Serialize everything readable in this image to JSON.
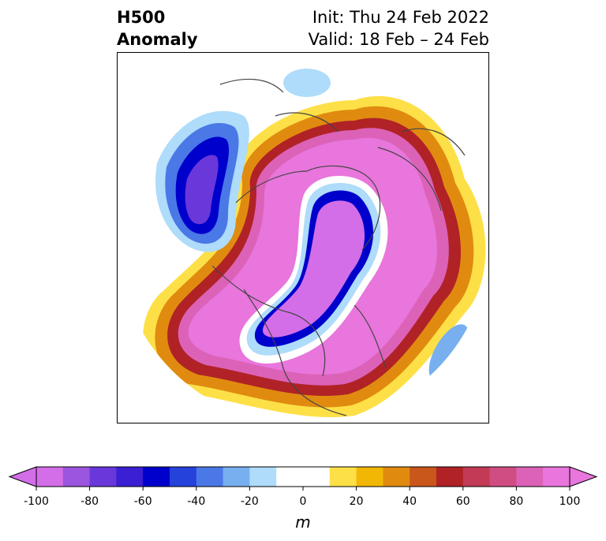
{
  "title": {
    "left_line1": "H500",
    "left_line2": "Anomaly",
    "right_line1": "Init: Thu 24 Feb 2022",
    "right_line2": "Valid: 18 Feb – 24 Feb"
  },
  "colorbar": {
    "unit": "m",
    "range": [
      -100,
      100
    ],
    "extend": "both",
    "ticks": [
      "-100",
      "-80",
      "-60",
      "-40",
      "-20",
      "0",
      "20",
      "40",
      "60",
      "80",
      "100"
    ],
    "colors": [
      "#d36ee8",
      "#9b55de",
      "#6a37db",
      "#3a1fd3",
      "#0000cc",
      "#2542db",
      "#4a78e6",
      "#78afef",
      "#aedcfa",
      "#ffffff",
      "#ffffff",
      "#fde047",
      "#f2b705",
      "#e08b10",
      "#c9561a",
      "#b02226",
      "#c23a55",
      "#d04d82",
      "#dc62b8",
      "#e876dc"
    ]
  },
  "map": {
    "projection": "north-polar-stereographic",
    "field": "500 hPa geopotential height anomaly",
    "features": [
      "coastlines",
      "country-borders",
      "state-province-borders"
    ]
  }
}
